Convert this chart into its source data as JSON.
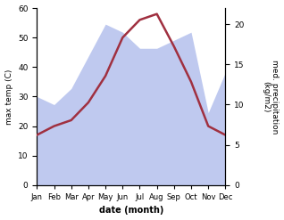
{
  "months": [
    "Jan",
    "Feb",
    "Mar",
    "Apr",
    "May",
    "Jun",
    "Jul",
    "Aug",
    "Sep",
    "Oct",
    "Nov",
    "Dec"
  ],
  "month_indices": [
    1,
    2,
    3,
    4,
    5,
    6,
    7,
    8,
    9,
    10,
    11,
    12
  ],
  "temperature": [
    17,
    20,
    22,
    28,
    37,
    50,
    56,
    58,
    47,
    35,
    20,
    17
  ],
  "precipitation": [
    11,
    10,
    12,
    16,
    20,
    19,
    17,
    17,
    18,
    19,
    9,
    14
  ],
  "temp_color": "#a03040",
  "precip_fill_color": "#b8c4ee",
  "xlabel": "date (month)",
  "ylabel_left": "max temp (C)",
  "ylabel_right": "med. precipitation\n(kg/m2)",
  "ylim_left": [
    0,
    60
  ],
  "ylim_right": [
    0,
    22
  ],
  "yticks_left": [
    0,
    10,
    20,
    30,
    40,
    50,
    60
  ],
  "yticks_right": [
    0,
    5,
    10,
    15,
    20
  ],
  "background_color": "#ffffff",
  "temp_linewidth": 1.8
}
